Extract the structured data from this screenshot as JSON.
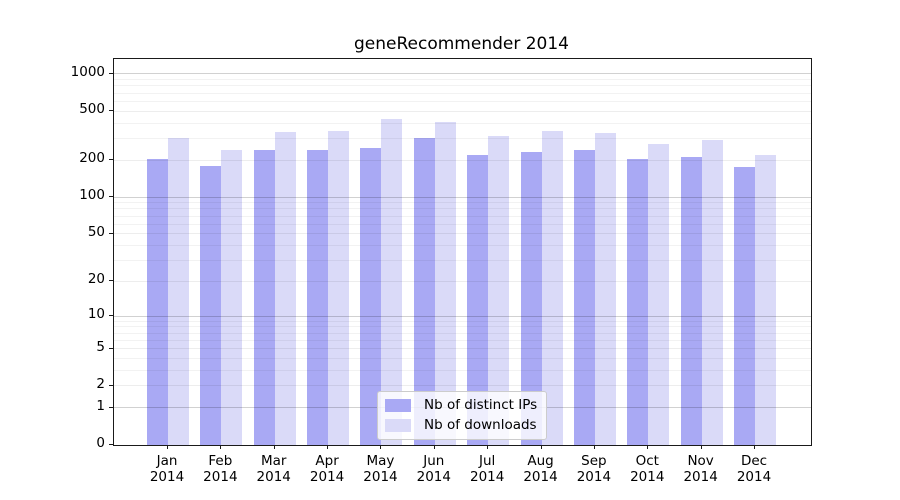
{
  "chart_data": {
    "type": "bar",
    "title": "geneRecommender 2014",
    "categories": [
      "Jan 2014",
      "Feb 2014",
      "Mar 2014",
      "Apr 2014",
      "May 2014",
      "Jun 2014",
      "Jul 2014",
      "Aug 2014",
      "Sep 2014",
      "Oct 2014",
      "Nov 2014",
      "Dec 2014"
    ],
    "x_tick_label_lines": [
      [
        "Jan",
        "2014"
      ],
      [
        "Feb",
        "2014"
      ],
      [
        "Mar",
        "2014"
      ],
      [
        "Apr",
        "2014"
      ],
      [
        "May",
        "2014"
      ],
      [
        "Jun",
        "2014"
      ],
      [
        "Jul",
        "2014"
      ],
      [
        "Aug",
        "2014"
      ],
      [
        "Sep",
        "2014"
      ],
      [
        "Oct",
        "2014"
      ],
      [
        "Nov",
        "2014"
      ],
      [
        "Dec",
        "2014"
      ]
    ],
    "series": [
      {
        "name": "Nb of distinct IPs",
        "color": "#a9a9f4",
        "values": [
          206,
          181,
          240,
          244,
          253,
          305,
          222,
          235,
          240,
          205,
          214,
          175
        ]
      },
      {
        "name": "Nb of downloads",
        "color": "#dadaf8",
        "values": [
          300,
          244,
          341,
          347,
          434,
          411,
          316,
          347,
          334,
          273,
          294,
          221
        ]
      }
    ],
    "yscale": "log1p",
    "ylim": [
      0,
      1330
    ],
    "y_axis_ticks": [
      0,
      1,
      2,
      5,
      10,
      20,
      50,
      100,
      200,
      500,
      1000
    ],
    "y_major_gridlines": [
      1,
      10,
      100,
      1000
    ],
    "y_labeled_gridlines": [
      2,
      5,
      20,
      50,
      200,
      500
    ],
    "y_minor_gridlines": [
      3,
      4,
      6,
      7,
      8,
      9,
      30,
      40,
      60,
      70,
      80,
      90,
      300,
      400,
      600,
      700,
      800,
      900
    ],
    "grid": true,
    "legend_position": "lower center",
    "xlabel": "",
    "ylabel": ""
  },
  "colors": {
    "ips_bar": "#a9a9f4",
    "downloads_bar": "#dadaf8",
    "axis": "#1a1a1a",
    "legend_border": "#cccccc"
  }
}
